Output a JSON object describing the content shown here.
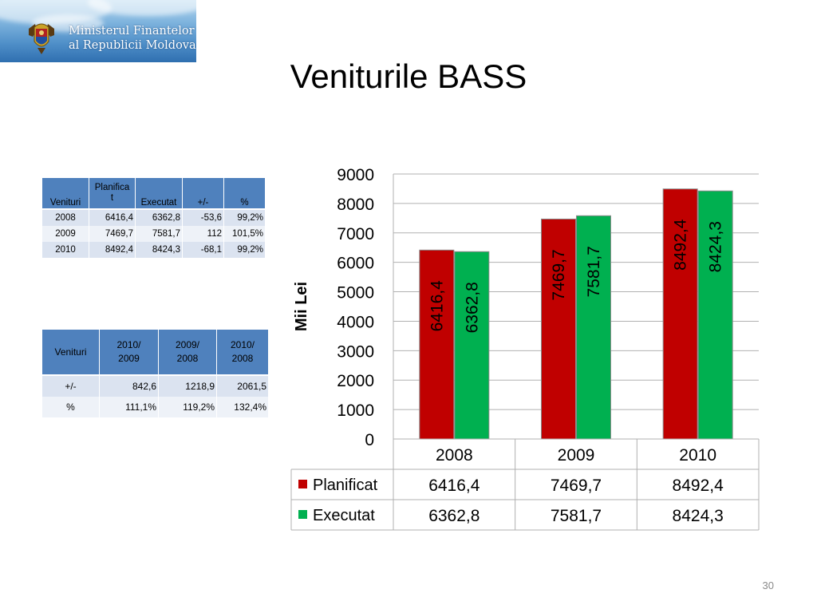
{
  "logo": {
    "line1": "Ministerul Finantelor",
    "line2": "al Republicii Moldova"
  },
  "title": "Veniturile BASS",
  "page_number": "30",
  "table1": {
    "headers": [
      "Venituri",
      "Planificat",
      "Executat",
      "+/-",
      "%"
    ],
    "planificat_part1": "Planifica",
    "planificat_part2": "t",
    "rows": [
      [
        "2008",
        "6416,4",
        "6362,8",
        "-53,6",
        "99,2%"
      ],
      [
        "2009",
        "7469,7",
        "7581,7",
        "112",
        "101,5%"
      ],
      [
        "2010",
        "8492,4",
        "8424,3",
        "-68,1",
        "99,2%"
      ]
    ]
  },
  "table2": {
    "headers": [
      {
        "line1": "Venituri",
        "line2": ""
      },
      {
        "line1": "2010/",
        "line2": "2009"
      },
      {
        "line1": "2009/",
        "line2": "2008"
      },
      {
        "line1": "2010/",
        "line2": "2008"
      }
    ],
    "rows": [
      [
        "+/-",
        "842,6",
        "1218,9",
        "2061,5"
      ],
      [
        "%",
        "111,1%",
        "119,2%",
        "132,4%"
      ]
    ]
  },
  "chart_data": {
    "type": "bar",
    "ylabel": "Mii Lei",
    "categories": [
      "2008",
      "2009",
      "2010"
    ],
    "ylim": [
      0,
      9000
    ],
    "yticks": [
      0,
      1000,
      2000,
      3000,
      4000,
      5000,
      6000,
      7000,
      8000,
      9000
    ],
    "grid": true,
    "legend": "data-table",
    "series": [
      {
        "name": "Planificat",
        "color": "#c00000",
        "values": [
          6416.4,
          7469.7,
          8492.4
        ],
        "labels": [
          "6416,4",
          "7469,7",
          "8492,4"
        ]
      },
      {
        "name": "Executat",
        "color": "#00b050",
        "values": [
          6362.8,
          7581.7,
          8424.3
        ],
        "labels": [
          "6362,8",
          "7581,7",
          "8424,3"
        ]
      }
    ]
  }
}
